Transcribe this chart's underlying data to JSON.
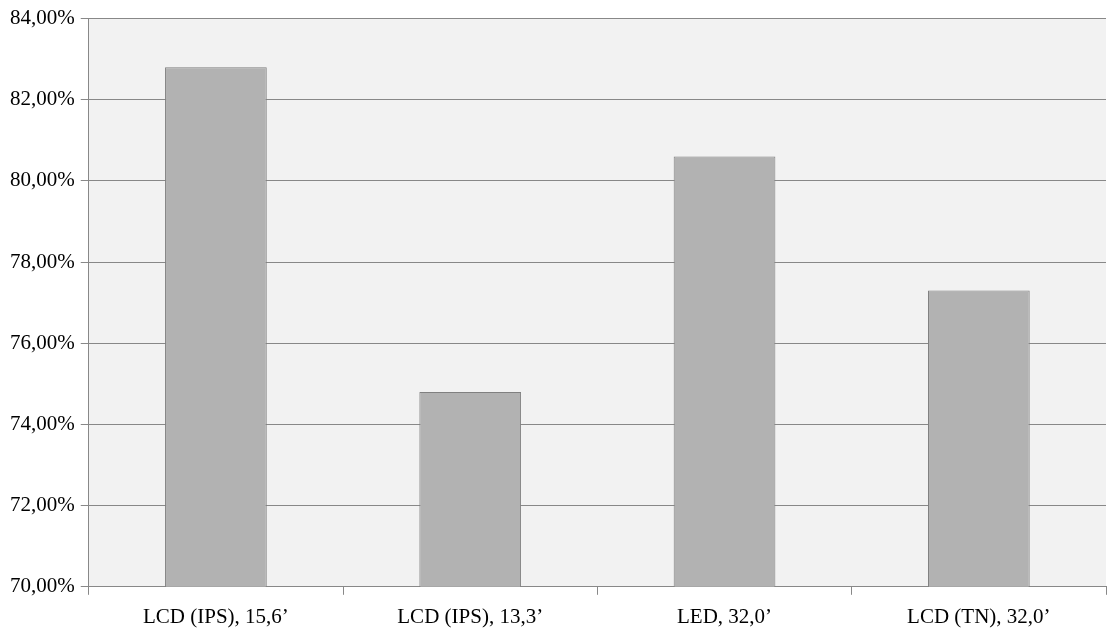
{
  "chart_data": {
    "type": "bar",
    "categories": [
      "LCD (IPS), 15,6’",
      "LCD (IPS), 13,3’",
      "LED, 32,0’",
      "LCD (TN), 32,0’"
    ],
    "values": [
      82.8,
      74.8,
      80.6,
      77.3
    ],
    "color": "#b2b2b2",
    "ylim": [
      70,
      84
    ],
    "yticks": [
      {
        "value": 70,
        "label": "70,00%"
      },
      {
        "value": 72,
        "label": "72,00%"
      },
      {
        "value": 74,
        "label": "74,00%"
      },
      {
        "value": 76,
        "label": "76,00%"
      },
      {
        "value": 78,
        "label": "78,00%"
      },
      {
        "value": 80,
        "label": "80,00%"
      },
      {
        "value": 82,
        "label": "82,00%"
      },
      {
        "value": 84,
        "label": "84,00%"
      }
    ],
    "grid": "y",
    "legend": false
  }
}
